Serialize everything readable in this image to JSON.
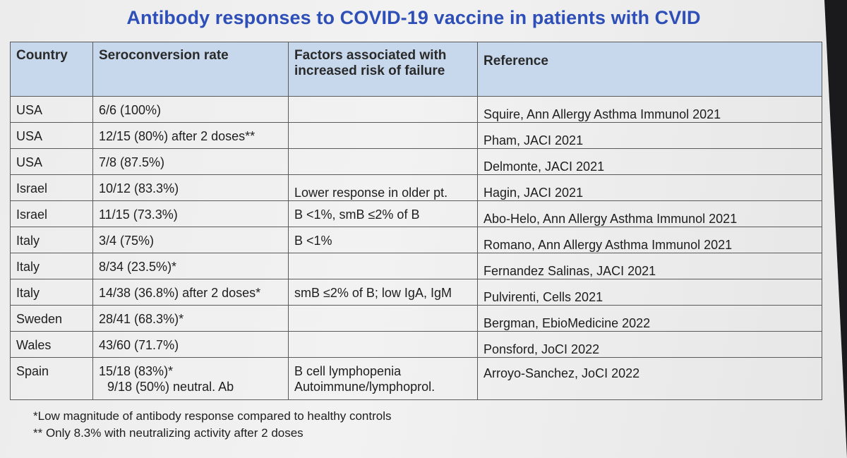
{
  "title": "Antibody responses to COVID-19 vaccine in patients with CVID",
  "columns": [
    "Country",
    "Seroconversion rate",
    "Factors associated with increased risk of failure",
    "Reference"
  ],
  "columns_display": {
    "factors_line1": "Factors associated with",
    "factors_line2": "increased risk of failure"
  },
  "rows": [
    {
      "country": "USA",
      "rate": "6/6 (100%)",
      "factors": "",
      "reference": "Squire, Ann Allergy Asthma Immunol 2021"
    },
    {
      "country": "USA",
      "rate": "12/15 (80%) after 2 doses**",
      "factors": "",
      "reference": "Pham, JACI 2021"
    },
    {
      "country": "USA",
      "rate": "7/8 (87.5%)",
      "factors": "",
      "reference": "Delmonte, JACI 2021"
    },
    {
      "country": "Israel",
      "rate": "10/12 (83.3%)",
      "factors": "Lower response in older pt.",
      "reference": "Hagin, JACI 2021"
    },
    {
      "country": "Israel",
      "rate": "11/15 (73.3%)",
      "factors": "B <1%, smB ≤2% of B",
      "reference": "Abo-Helo, Ann Allergy Asthma Immunol 2021"
    },
    {
      "country": "Italy",
      "rate": "3/4 (75%)",
      "factors": "B <1%",
      "reference": "Romano, Ann Allergy Asthma Immunol 2021"
    },
    {
      "country": "Italy",
      "rate": "8/34 (23.5%)*",
      "factors": "",
      "reference": "Fernandez Salinas, JACI 2021"
    },
    {
      "country": "Italy",
      "rate": "14/38 (36.8%) after 2 doses*",
      "factors": "smB ≤2% of B; low IgA, IgM",
      "reference": "Pulvirenti, Cells 2021"
    },
    {
      "country": "Sweden",
      "rate": "28/41 (68.3%)*",
      "factors": "",
      "reference": "Bergman, EbioMedicine 2022"
    },
    {
      "country": "Wales",
      "rate": "43/60 (71.7%)",
      "factors": "",
      "reference": "Ponsford, JoCI 2022"
    }
  ],
  "last_row": {
    "country": "Spain",
    "rate_line1": "15/18 (83%)*",
    "rate_line2": "9/18 (50%) neutral. Ab",
    "factors_line1": "B cell lymphopenia",
    "factors_line2": "Autoimmune/lymphoprol.",
    "reference": "Arroyo-Sanchez, JoCI 2022"
  },
  "footnotes": [
    "*Low magnitude of antibody response compared to healthy controls",
    "** Only 8.3% with neutralizing activity after 2 doses"
  ],
  "colors": {
    "title": "#2e4fb8",
    "header_fill": "#c7d8ec",
    "border": "#5a5a5a"
  }
}
